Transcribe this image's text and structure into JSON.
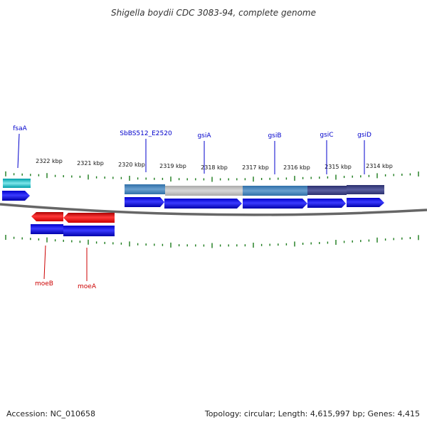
{
  "title": "Shigella boydii CDC 3083-94, complete genome",
  "footer": {
    "accession": "Accession: NC_010658",
    "topology": "Topology: circular; Length: 4,615,997 bp; Genes: 4,415"
  },
  "colors": {
    "forward_label": "#0000cc",
    "reverse_label": "#cc0000",
    "cds_forward": "#0000ee",
    "cds_reverse": "#ee0000",
    "ruler_tick": "#1a7a1a",
    "backbone": "#666666"
  },
  "ruler_top": {
    "labels": [
      "2322 kbp",
      "2321 kbp",
      "2320 kbp",
      "2319 kbp",
      "2318 kbp",
      "2317 kbp",
      "2316 kbp",
      "2315 kbp",
      "2314 kbp"
    ]
  },
  "genes_forward": [
    {
      "name": "fsaA",
      "color": "#0000cc"
    },
    {
      "name": "SbBS512_E2520",
      "color": "#0000cc"
    },
    {
      "name": "gsiA",
      "color": "#0000cc"
    },
    {
      "name": "gsiB",
      "color": "#0000cc"
    },
    {
      "name": "gsiC",
      "color": "#0000cc"
    },
    {
      "name": "gsiD",
      "color": "#0000cc"
    }
  ],
  "genes_reverse": [
    {
      "name": "moeB",
      "color": "#cc0000"
    },
    {
      "name": "moeA",
      "color": "#cc0000"
    }
  ]
}
